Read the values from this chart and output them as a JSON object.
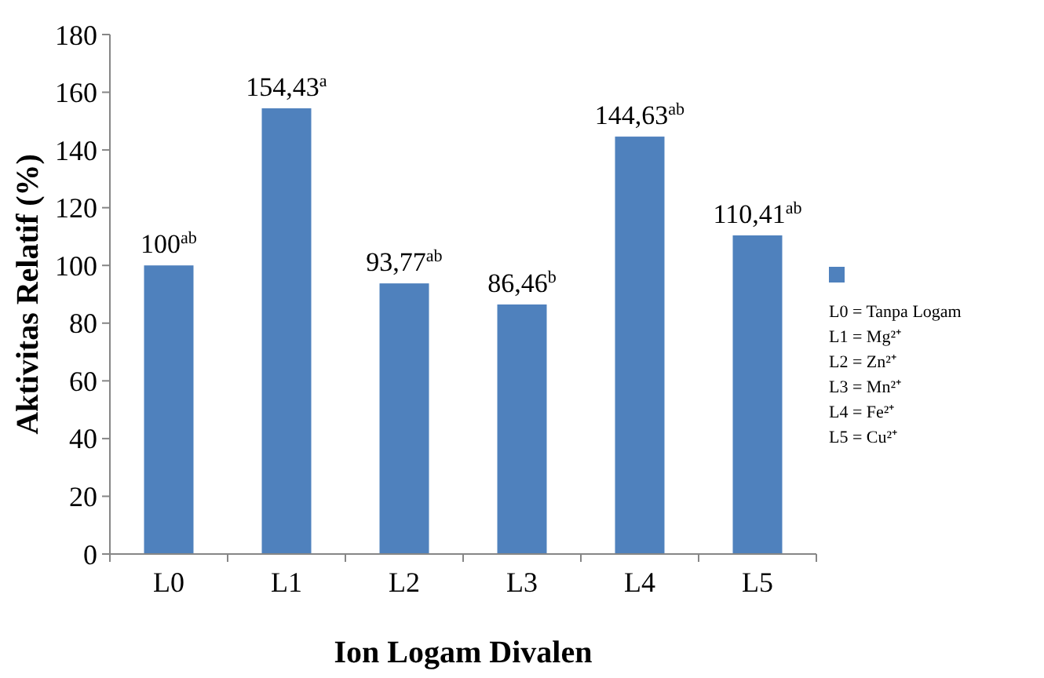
{
  "chart_data": {
    "type": "bar",
    "xlabel": "Ion Logam Divalen",
    "ylabel": "Aktivitas Relatif (%)",
    "categories": [
      "L0",
      "L1",
      "L2",
      "L3",
      "L4",
      "L5"
    ],
    "series": [
      {
        "name": "L0 = Tanpa Logam\nL1 = Mg²⁺\nL2 = Zn²⁺\nL3 = Mn²⁺\nL4 = Fe²⁺\nL5 = Cu²⁺",
        "color": "#4f81bd",
        "values": [
          100,
          154.43,
          93.77,
          86.46,
          144.63,
          110.41
        ],
        "value_labels": [
          "100$^{ab}$",
          "154,43$^{a}$",
          "93,77$^{ab}$",
          "86,46$^{b}$",
          "144,63$^{ab}$",
          "110,41$^{ab}$"
        ]
      }
    ],
    "ylim": [
      0,
      180
    ],
    "yticks": [
      0,
      20,
      40,
      60,
      80,
      100,
      120,
      140,
      160,
      180
    ],
    "grid": false,
    "legend": "right"
  }
}
